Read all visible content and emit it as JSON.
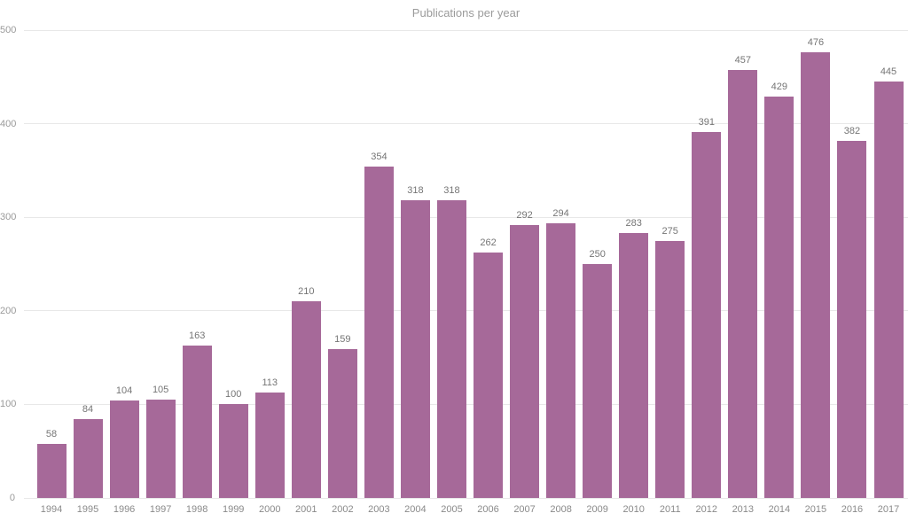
{
  "chart_data": {
    "type": "bar",
    "title": "Publications per year",
    "categories": [
      "1994",
      "1995",
      "1996",
      "1997",
      "1998",
      "1999",
      "2000",
      "2001",
      "2002",
      "2003",
      "2004",
      "2005",
      "2006",
      "2007",
      "2008",
      "2009",
      "2010",
      "2011",
      "2012",
      "2013",
      "2014",
      "2015",
      "2016",
      "2017"
    ],
    "values": [
      58,
      84,
      104,
      105,
      163,
      100,
      113,
      210,
      159,
      354,
      318,
      318,
      262,
      292,
      294,
      250,
      283,
      275,
      391,
      457,
      429,
      476,
      382,
      445
    ],
    "xlabel": "",
    "ylabel": "",
    "ylim": [
      0,
      500
    ],
    "yticks": [
      0,
      100,
      200,
      300,
      400,
      500
    ],
    "grid": true,
    "legend": false,
    "data_labels": true,
    "colors": {
      "bar": "#a66999",
      "gridline": "#e8e8e8",
      "title": "#9b9b9b",
      "y_axis_label": "#9a9a9a",
      "x_axis_label": "#8a8a8a",
      "data_label": "#757575",
      "background": "#ffffff"
    }
  }
}
